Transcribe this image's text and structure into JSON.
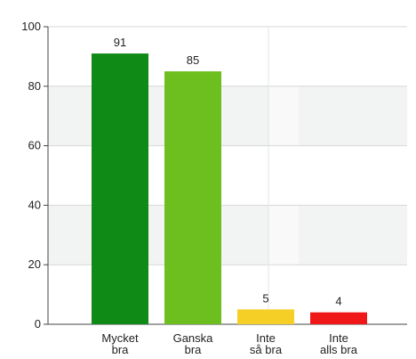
{
  "chart_data": {
    "type": "bar",
    "categories": [
      "Mycket bra",
      "Ganska bra",
      "Inte så bra",
      "Inte alls bra"
    ],
    "category_lines": [
      [
        "Mycket",
        "bra"
      ],
      [
        "Ganska",
        "bra"
      ],
      [
        "Inte",
        "så bra"
      ],
      [
        "Inte",
        "alls bra"
      ]
    ],
    "values": [
      91,
      85,
      5,
      4
    ],
    "value_labels": [
      "91",
      "85",
      "5",
      "4"
    ],
    "colors": [
      "#0f8a16",
      "#6cbf1e",
      "#f5cf26",
      "#ef1717"
    ],
    "ylim": [
      0,
      100
    ],
    "yticks": [
      0,
      20,
      40,
      60,
      80,
      100
    ],
    "ytick_labels": [
      "0",
      "20",
      "40",
      "60",
      "80",
      "100"
    ],
    "grid": true,
    "title": "",
    "xlabel": "",
    "ylabel": ""
  }
}
